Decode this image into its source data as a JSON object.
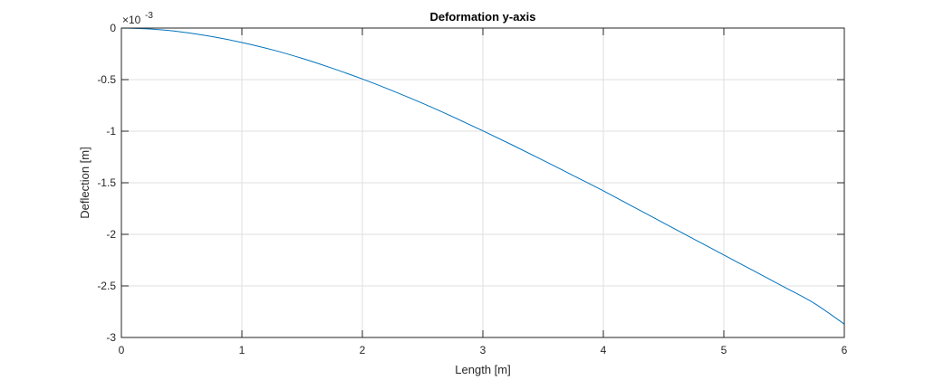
{
  "chart_data": {
    "type": "line",
    "title": "Deformation y-axis",
    "xlabel": "Length [m]",
    "ylabel": "Deflection [m]",
    "y_exponent_label": "×10",
    "y_exponent_power": "-3",
    "xlim": [
      0,
      6
    ],
    "ylim": [
      -3,
      0
    ],
    "grid": true,
    "x_ticks": [
      0,
      1,
      2,
      3,
      4,
      5,
      6
    ],
    "x_tick_labels": [
      "0",
      "1",
      "2",
      "3",
      "4",
      "5",
      "6"
    ],
    "y_ticks": [
      0,
      -0.5,
      -1,
      -1.5,
      -2,
      -2.5,
      -3
    ],
    "y_tick_labels": [
      "0",
      "-0.5",
      "-1",
      "-1.5",
      "-2",
      "-2.5",
      "-3"
    ],
    "series": [
      {
        "name": "deflection",
        "color": "#0072BD",
        "x": [
          0,
          0.25,
          0.5,
          0.75,
          1,
          1.25,
          1.5,
          1.75,
          2,
          2.25,
          2.5,
          2.75,
          3,
          3.25,
          3.5,
          3.75,
          4,
          4.25,
          4.5,
          4.75,
          5,
          5.25,
          5.5,
          5.75,
          6
        ],
        "values": [
          0,
          -0.01,
          -0.038,
          -0.082,
          -0.14,
          -0.21,
          -0.294,
          -0.39,
          -0.494,
          -0.608,
          -0.73,
          -0.86,
          -0.996,
          -1.137,
          -1.282,
          -1.43,
          -1.578,
          -1.734,
          -1.89,
          -2.045,
          -2.2,
          -2.355,
          -2.51,
          -2.668,
          -2.87
        ]
      }
    ]
  },
  "colors": {
    "axis": "#262626",
    "grid": "#dfdfdf",
    "background": "#ffffff"
  }
}
